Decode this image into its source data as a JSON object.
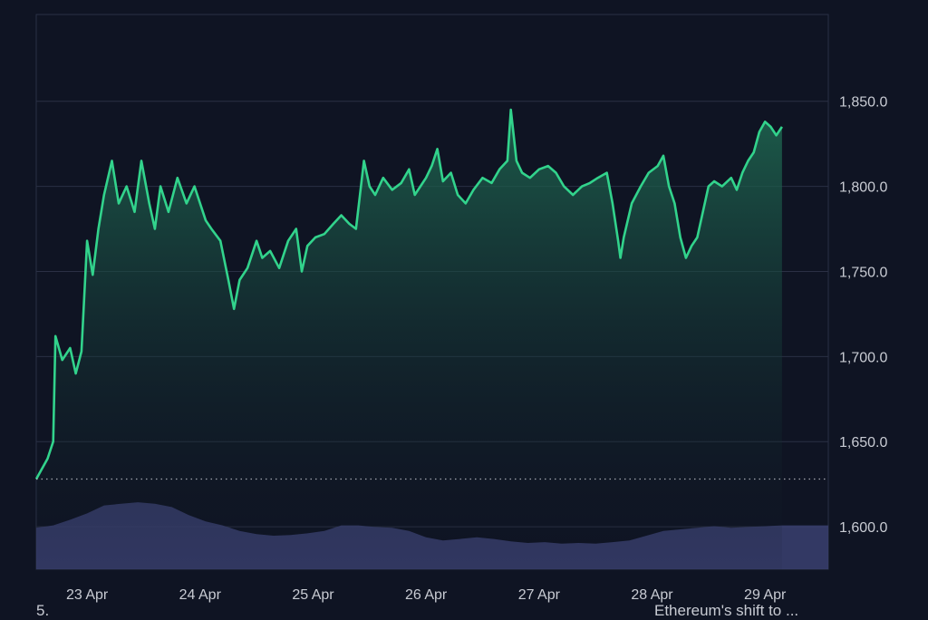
{
  "chart_data": {
    "type": "area",
    "title": "",
    "xlabel": "",
    "ylabel": "",
    "x_tick_labels": [
      "23 Apr",
      "24 Apr",
      "25 Apr",
      "26 Apr",
      "27 Apr",
      "28 Apr",
      "29 Apr"
    ],
    "y_tick_labels": [
      "1,600.0",
      "1,650.0",
      "1,700.0",
      "1,750.0",
      "1,800.0",
      "1,850.0"
    ],
    "ylim": [
      1575,
      1901
    ],
    "x_range_days": [
      22.55,
      29.56
    ],
    "baseline": 1628,
    "grid": true,
    "legend": "none",
    "series": [
      {
        "values": [
          [
            22.55,
            1628
          ],
          [
            22.65,
            1640
          ],
          [
            22.7,
            1650
          ],
          [
            22.72,
            1712
          ],
          [
            22.78,
            1698
          ],
          [
            22.85,
            1705
          ],
          [
            22.9,
            1690
          ],
          [
            22.95,
            1703
          ],
          [
            23.0,
            1768
          ],
          [
            23.05,
            1748
          ],
          [
            23.1,
            1775
          ],
          [
            23.15,
            1795
          ],
          [
            23.22,
            1815
          ],
          [
            23.28,
            1790
          ],
          [
            23.35,
            1800
          ],
          [
            23.42,
            1785
          ],
          [
            23.48,
            1815
          ],
          [
            23.55,
            1790
          ],
          [
            23.6,
            1775
          ],
          [
            23.65,
            1800
          ],
          [
            23.72,
            1785
          ],
          [
            23.8,
            1805
          ],
          [
            23.88,
            1790
          ],
          [
            23.95,
            1800
          ],
          [
            24.05,
            1780
          ],
          [
            24.1,
            1775
          ],
          [
            24.18,
            1768
          ],
          [
            24.25,
            1745
          ],
          [
            24.3,
            1728
          ],
          [
            24.35,
            1745
          ],
          [
            24.42,
            1752
          ],
          [
            24.5,
            1768
          ],
          [
            24.55,
            1758
          ],
          [
            24.62,
            1762
          ],
          [
            24.7,
            1752
          ],
          [
            24.78,
            1768
          ],
          [
            24.85,
            1775
          ],
          [
            24.9,
            1750
          ],
          [
            24.95,
            1765
          ],
          [
            25.02,
            1770
          ],
          [
            25.1,
            1772
          ],
          [
            25.18,
            1778
          ],
          [
            25.25,
            1783
          ],
          [
            25.32,
            1778
          ],
          [
            25.38,
            1775
          ],
          [
            25.45,
            1815
          ],
          [
            25.5,
            1800
          ],
          [
            25.55,
            1795
          ],
          [
            25.62,
            1805
          ],
          [
            25.7,
            1798
          ],
          [
            25.78,
            1802
          ],
          [
            25.85,
            1810
          ],
          [
            25.9,
            1795
          ],
          [
            25.95,
            1800
          ],
          [
            26.0,
            1805
          ],
          [
            26.05,
            1812
          ],
          [
            26.1,
            1822
          ],
          [
            26.15,
            1803
          ],
          [
            26.22,
            1808
          ],
          [
            26.28,
            1795
          ],
          [
            26.35,
            1790
          ],
          [
            26.42,
            1798
          ],
          [
            26.5,
            1805
          ],
          [
            26.58,
            1802
          ],
          [
            26.65,
            1810
          ],
          [
            26.72,
            1815
          ],
          [
            26.75,
            1845
          ],
          [
            26.8,
            1815
          ],
          [
            26.85,
            1808
          ],
          [
            26.92,
            1805
          ],
          [
            27.0,
            1810
          ],
          [
            27.08,
            1812
          ],
          [
            27.15,
            1808
          ],
          [
            27.22,
            1800
          ],
          [
            27.3,
            1795
          ],
          [
            27.38,
            1800
          ],
          [
            27.45,
            1802
          ],
          [
            27.52,
            1805
          ],
          [
            27.6,
            1808
          ],
          [
            27.65,
            1790
          ],
          [
            27.7,
            1768
          ],
          [
            27.72,
            1758
          ],
          [
            27.75,
            1770
          ],
          [
            27.82,
            1790
          ],
          [
            27.9,
            1800
          ],
          [
            27.97,
            1808
          ],
          [
            28.05,
            1812
          ],
          [
            28.1,
            1818
          ],
          [
            28.15,
            1800
          ],
          [
            28.2,
            1790
          ],
          [
            28.25,
            1770
          ],
          [
            28.3,
            1758
          ],
          [
            28.35,
            1765
          ],
          [
            28.4,
            1770
          ],
          [
            28.45,
            1785
          ],
          [
            28.5,
            1800
          ],
          [
            28.55,
            1803
          ],
          [
            28.62,
            1800
          ],
          [
            28.7,
            1805
          ],
          [
            28.75,
            1798
          ],
          [
            28.8,
            1808
          ],
          [
            28.85,
            1815
          ],
          [
            28.9,
            1820
          ],
          [
            28.95,
            1832
          ],
          [
            29.0,
            1838
          ],
          [
            29.05,
            1835
          ],
          [
            29.1,
            1830
          ],
          [
            29.15,
            1835
          ]
        ]
      }
    ],
    "volume_series": {
      "values": [
        [
          22.55,
          0.52
        ],
        [
          22.7,
          0.55
        ],
        [
          22.85,
          0.62
        ],
        [
          23.0,
          0.7
        ],
        [
          23.15,
          0.8
        ],
        [
          23.3,
          0.82
        ],
        [
          23.45,
          0.84
        ],
        [
          23.6,
          0.82
        ],
        [
          23.75,
          0.78
        ],
        [
          23.9,
          0.68
        ],
        [
          24.05,
          0.6
        ],
        [
          24.2,
          0.55
        ],
        [
          24.35,
          0.48
        ],
        [
          24.5,
          0.44
        ],
        [
          24.65,
          0.42
        ],
        [
          24.8,
          0.43
        ],
        [
          24.95,
          0.45
        ],
        [
          25.1,
          0.48
        ],
        [
          25.25,
          0.55
        ],
        [
          25.4,
          0.55
        ],
        [
          25.55,
          0.53
        ],
        [
          25.7,
          0.52
        ],
        [
          25.85,
          0.48
        ],
        [
          26.0,
          0.4
        ],
        [
          26.15,
          0.36
        ],
        [
          26.3,
          0.38
        ],
        [
          26.45,
          0.4
        ],
        [
          26.6,
          0.38
        ],
        [
          26.75,
          0.35
        ],
        [
          26.9,
          0.33
        ],
        [
          27.05,
          0.34
        ],
        [
          27.2,
          0.32
        ],
        [
          27.35,
          0.33
        ],
        [
          27.5,
          0.32
        ],
        [
          27.65,
          0.34
        ],
        [
          27.8,
          0.36
        ],
        [
          27.95,
          0.42
        ],
        [
          28.1,
          0.48
        ],
        [
          28.25,
          0.5
        ],
        [
          28.4,
          0.52
        ],
        [
          28.55,
          0.54
        ],
        [
          28.7,
          0.52
        ],
        [
          28.85,
          0.53
        ],
        [
          29.0,
          0.54
        ],
        [
          29.15,
          0.55
        ]
      ]
    },
    "colors": {
      "background": "#0f1423",
      "line": "#32d38c",
      "area_fill": "#1f5a48",
      "volume": "#3a4070",
      "grid": "#2a3044",
      "tick_text": "#c8cbd3",
      "baseline": "#c8cbd3"
    }
  },
  "footer": {
    "left_text": "5.",
    "right_text": "Ethereum's shift to ..."
  }
}
